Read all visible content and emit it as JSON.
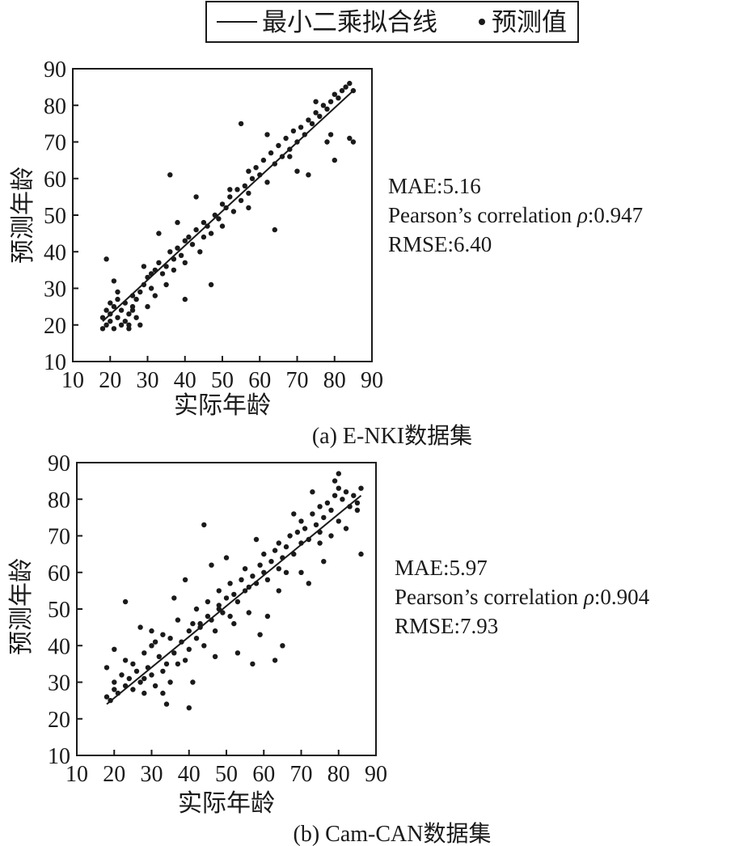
{
  "legend": {
    "line_label": "最小二乘拟合线",
    "point_label": "预测值"
  },
  "chart_data": [
    {
      "type": "scatter",
      "caption": "(a) E-NKI数据集",
      "xlabel": "实际年龄",
      "ylabel": "预测年龄",
      "xlim": [
        10,
        90
      ],
      "ylim": [
        10,
        90
      ],
      "xticks": [
        "10",
        "20",
        "30",
        "40",
        "50",
        "60",
        "70",
        "80",
        "90"
      ],
      "yticks": [
        "10",
        "20",
        "30",
        "40",
        "50",
        "60",
        "70",
        "80",
        "90"
      ],
      "fit_line": {
        "x": [
          18,
          85
        ],
        "y": [
          21,
          84
        ]
      },
      "stats": {
        "mae": "MAE:5.16",
        "pearson_prefix": "Pearson’s correlation ",
        "pearson_symbol": "ρ",
        "pearson_value": ":0.947",
        "rmse": "RMSE:6.40"
      },
      "points": {
        "x": [
          18,
          18,
          19,
          19,
          20,
          20,
          20,
          21,
          21,
          22,
          22,
          23,
          23,
          24,
          24,
          25,
          25,
          26,
          26,
          27,
          27,
          28,
          29,
          30,
          30,
          31,
          32,
          32,
          33,
          34,
          35,
          35,
          36,
          37,
          37,
          38,
          39,
          40,
          40,
          41,
          42,
          43,
          44,
          45,
          45,
          46,
          47,
          48,
          49,
          50,
          50,
          51,
          52,
          53,
          54,
          55,
          56,
          57,
          57,
          58,
          59,
          60,
          61,
          62,
          63,
          64,
          65,
          66,
          67,
          68,
          69,
          70,
          71,
          72,
          73,
          74,
          75,
          76,
          77,
          78,
          79,
          80,
          81,
          82,
          83,
          84,
          85,
          19,
          22,
          25,
          28,
          31,
          36,
          40,
          47,
          55,
          64,
          70,
          73,
          78,
          80,
          84,
          85,
          21,
          26,
          29,
          33,
          38,
          43,
          52,
          57,
          62,
          68,
          75,
          79
        ],
        "y": [
          22,
          19,
          24,
          20,
          23,
          21,
          26,
          19,
          25,
          22,
          27,
          20,
          24,
          21,
          26,
          23,
          20,
          28,
          24,
          27,
          22,
          29,
          31,
          25,
          33,
          30,
          35,
          28,
          37,
          34,
          36,
          31,
          40,
          38,
          35,
          41,
          39,
          43,
          37,
          44,
          42,
          46,
          40,
          48,
          44,
          47,
          45,
          50,
          49,
          53,
          47,
          52,
          55,
          51,
          57,
          54,
          58,
          62,
          56,
          60,
          63,
          61,
          65,
          59,
          67,
          64,
          69,
          66,
          71,
          68,
          73,
          70,
          74,
          72,
          76,
          75,
          78,
          77,
          80,
          79,
          81,
          83,
          82,
          84,
          85,
          86,
          84,
          38,
          29,
          19,
          20,
          34,
          61,
          27,
          31,
          75,
          46,
          62,
          61,
          70,
          65,
          71,
          70,
          32,
          25,
          36,
          45,
          48,
          55,
          57,
          52,
          72,
          66,
          81,
          72
        ]
      }
    },
    {
      "type": "scatter",
      "caption": "(b) Cam-CAN数据集",
      "xlabel": "实际年龄",
      "ylabel": "预测年龄",
      "xlim": [
        10,
        90
      ],
      "ylim": [
        10,
        90
      ],
      "xticks": [
        "10",
        "20",
        "30",
        "40",
        "50",
        "60",
        "70",
        "80",
        "90"
      ],
      "yticks": [
        "10",
        "20",
        "30",
        "40",
        "50",
        "60",
        "70",
        "80",
        "90"
      ],
      "fit_line": {
        "x": [
          18,
          86
        ],
        "y": [
          24,
          81
        ]
      },
      "stats": {
        "mae": "MAE:5.97",
        "pearson_prefix": "Pearson’s correlation ",
        "pearson_symbol": "ρ",
        "pearson_value": ":0.904",
        "rmse": "RMSE:7.93"
      },
      "points": {
        "x": [
          18,
          18,
          19,
          20,
          20,
          21,
          22,
          23,
          23,
          24,
          25,
          25,
          26,
          27,
          28,
          28,
          29,
          30,
          30,
          31,
          32,
          33,
          33,
          34,
          35,
          35,
          36,
          37,
          37,
          38,
          39,
          40,
          40,
          41,
          42,
          42,
          43,
          44,
          45,
          45,
          46,
          47,
          48,
          48,
          49,
          50,
          51,
          51,
          52,
          53,
          54,
          55,
          55,
          56,
          57,
          58,
          59,
          60,
          60,
          61,
          62,
          63,
          64,
          64,
          65,
          66,
          67,
          68,
          69,
          70,
          70,
          71,
          72,
          73,
          74,
          75,
          75,
          76,
          77,
          78,
          79,
          80,
          80,
          81,
          82,
          83,
          84,
          85,
          86,
          23,
          30,
          34,
          40,
          44,
          48,
          57,
          63,
          65,
          72,
          75,
          80,
          86,
          27,
          31,
          36,
          39,
          43,
          46,
          50,
          53,
          56,
          58,
          61,
          66,
          68,
          73,
          76,
          79,
          82,
          85,
          20,
          28,
          33,
          41,
          47,
          52,
          59,
          64,
          70,
          78
        ],
        "y": [
          26,
          34,
          25,
          28,
          30,
          27,
          32,
          29,
          36,
          31,
          28,
          35,
          33,
          30,
          38,
          27,
          34,
          32,
          40,
          29,
          37,
          33,
          43,
          35,
          30,
          42,
          38,
          35,
          47,
          41,
          36,
          44,
          39,
          46,
          42,
          50,
          45,
          40,
          48,
          52,
          47,
          44,
          51,
          55,
          49,
          53,
          48,
          57,
          54,
          52,
          58,
          55,
          61,
          56,
          59,
          57,
          62,
          60,
          65,
          58,
          63,
          66,
          61,
          68,
          64,
          67,
          70,
          65,
          71,
          68,
          74,
          72,
          69,
          76,
          73,
          78,
          71,
          75,
          79,
          77,
          81,
          74,
          83,
          80,
          82,
          78,
          81,
          79,
          83,
          52,
          44,
          24,
          23,
          73,
          50,
          35,
          36,
          40,
          57,
          68,
          87,
          65,
          45,
          41,
          53,
          58,
          46,
          62,
          64,
          38,
          49,
          69,
          48,
          60,
          76,
          82,
          63,
          85,
          72,
          77,
          39,
          31,
          27,
          30,
          37,
          46,
          43,
          55,
          60,
          70
        ]
      }
    }
  ]
}
